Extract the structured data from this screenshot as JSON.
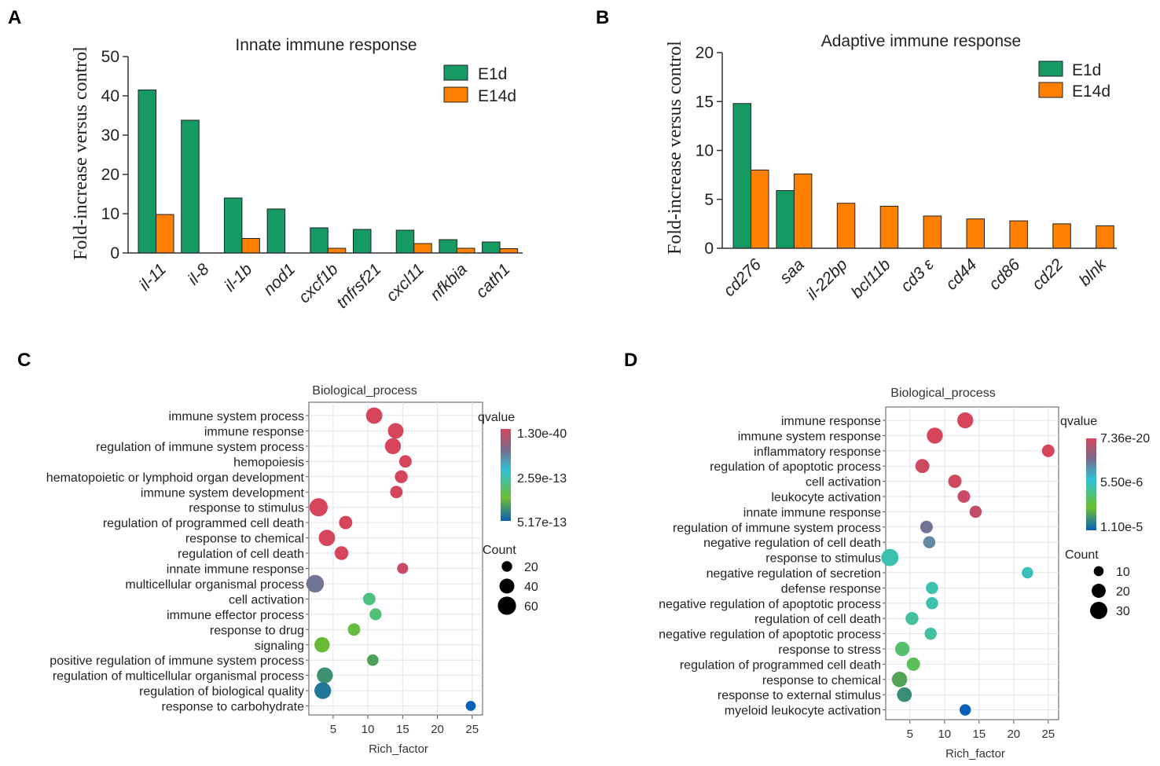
{
  "panels": {
    "A": "A",
    "B": "B",
    "C": "C",
    "D": "D"
  },
  "chart_data": [
    {
      "id": "A",
      "type": "bar",
      "title": "Innate immune response",
      "ylabel": "Fold-increase versus control",
      "xlabel": "",
      "ylim": [
        0,
        50
      ],
      "yticks": [
        0,
        10,
        20,
        30,
        40,
        50
      ],
      "categories": [
        "il-11",
        "il-8",
        "il-1b",
        "nod1",
        "cxcf1b",
        "tnfrsf21",
        "cxcl11",
        "nfkbia",
        "cath1"
      ],
      "series": [
        {
          "name": "E1d",
          "color": "#159A63",
          "values": [
            41.5,
            33.8,
            14,
            11.2,
            6.4,
            6,
            5.8,
            3.4,
            2.8
          ]
        },
        {
          "name": "E14d",
          "color": "#FF8000",
          "values": [
            9.8,
            null,
            3.7,
            null,
            1.2,
            null,
            2.4,
            1.2,
            1.1
          ]
        }
      ],
      "legend": "top-right"
    },
    {
      "id": "B",
      "type": "bar",
      "title": "Adaptive immune response",
      "ylabel": "Fold-increase versus control",
      "xlabel": "",
      "ylim": [
        0,
        20
      ],
      "yticks": [
        0,
        5,
        10,
        15,
        20
      ],
      "categories": [
        "cd276",
        "saa",
        "il-22bp",
        "bcl11b",
        "cd3 ε",
        "cd44",
        "cd86",
        "cd22",
        "blnk"
      ],
      "series": [
        {
          "name": "E1d",
          "color": "#159A63",
          "values": [
            14.8,
            5.9,
            null,
            null,
            null,
            null,
            null,
            null,
            null
          ]
        },
        {
          "name": "E14d",
          "color": "#FF8000",
          "values": [
            8,
            7.6,
            4.6,
            4.3,
            3.3,
            3,
            2.8,
            2.5,
            2.3
          ]
        }
      ],
      "legend": "top-right"
    },
    {
      "id": "C",
      "type": "scatter",
      "title": "Biological_process",
      "xlabel": "Rich_factor",
      "xlim": [
        1.5,
        26.5
      ],
      "xticks": [
        5,
        10,
        15,
        20,
        25
      ],
      "terms": [
        "immune system process",
        "immune response",
        "regulation of immune system process",
        "hemopoiesis",
        "hematopoietic or lymphoid organ development",
        "immune system development",
        "response to stimulus",
        "regulation of programmed cell death",
        "response to chemical",
        "regulation of cell death",
        "innate immune response",
        "multicellular organismal process",
        "cell activation",
        "immune effector process",
        "response to drug",
        "signaling",
        "positive regulation of immune system process",
        "regulation of multicellular organismal process",
        "regulation of biological quality",
        "response to carbohydrate"
      ],
      "points": [
        {
          "x": 10.9,
          "count": 48,
          "q": 0.0
        },
        {
          "x": 14,
          "count": 44,
          "q": 0.0
        },
        {
          "x": 13.6,
          "count": 46,
          "q": 0.0
        },
        {
          "x": 15.4,
          "count": 28,
          "q": 0.0
        },
        {
          "x": 14.8,
          "count": 30,
          "q": 0.0
        },
        {
          "x": 14.1,
          "count": 28,
          "q": 0.0
        },
        {
          "x": 2.9,
          "count": 60,
          "q": 0.0
        },
        {
          "x": 6.8,
          "count": 32,
          "q": 0.0
        },
        {
          "x": 4.1,
          "count": 48,
          "q": 0.0
        },
        {
          "x": 6.2,
          "count": 34,
          "q": 0.0
        },
        {
          "x": 15,
          "count": 22,
          "q": 0.03
        },
        {
          "x": 2.4,
          "count": 56,
          "q": 0.25
        },
        {
          "x": 10.2,
          "count": 28,
          "q": 0.6
        },
        {
          "x": 11.1,
          "count": 26,
          "q": 0.62
        },
        {
          "x": 8,
          "count": 28,
          "q": 0.72
        },
        {
          "x": 3.4,
          "count": 42,
          "q": 0.76
        },
        {
          "x": 10.7,
          "count": 24,
          "q": 0.83
        },
        {
          "x": 3.8,
          "count": 46,
          "q": 0.87
        },
        {
          "x": 3.5,
          "count": 50,
          "q": 0.94
        },
        {
          "x": 24.8,
          "count": 18,
          "q": 1.0
        }
      ],
      "colorbar": {
        "title": "qvalue",
        "labels": [
          "1.30e-40",
          "2.59e-13",
          "5.17e-13"
        ]
      },
      "size_legend": {
        "title": "Count",
        "values": [
          20,
          40,
          60
        ]
      }
    },
    {
      "id": "D",
      "type": "scatter",
      "title": "Biological_process",
      "xlabel": "Rich_factor",
      "xlim": [
        1.5,
        26.5
      ],
      "xticks": [
        5,
        10,
        15,
        20,
        25
      ],
      "xtick_labels": [
        "5",
        "10",
        "15",
        "20",
        "25"
      ],
      "terms": [
        "immune response",
        "immune system response",
        "inflammatory response",
        "regulation of apoptotic process",
        "cell activation",
        "leukocyte activation",
        "innate immune response",
        "regulation of immune system process",
        "negative regulation of cell death",
        "response to stimulus",
        "negative regulation of secretion",
        "defense response",
        "negative regulation of apoptotic process",
        "regulation of cell death",
        "negative regulation of apoptotic process",
        "response to stress",
        "regulation of programmed cell death",
        "response to chemical",
        "response to external stimulus",
        "myeloid leukocyte activation"
      ],
      "points": [
        {
          "x": 13,
          "count": 26,
          "q": 0.0
        },
        {
          "x": 8.6,
          "count": 26,
          "q": 0.0
        },
        {
          "x": 25,
          "count": 16,
          "q": 0.0
        },
        {
          "x": 6.8,
          "count": 20,
          "q": 0.02
        },
        {
          "x": 11.5,
          "count": 18,
          "q": 0.02
        },
        {
          "x": 12.8,
          "count": 16,
          "q": 0.03
        },
        {
          "x": 14.5,
          "count": 15,
          "q": 0.05
        },
        {
          "x": 7.4,
          "count": 16,
          "q": 0.25
        },
        {
          "x": 7.8,
          "count": 15,
          "q": 0.3
        },
        {
          "x": 2.1,
          "count": 30,
          "q": 0.52
        },
        {
          "x": 22,
          "count": 13,
          "q": 0.5
        },
        {
          "x": 8.2,
          "count": 15,
          "q": 0.52
        },
        {
          "x": 8.2,
          "count": 15,
          "q": 0.52
        },
        {
          "x": 5.3,
          "count": 17,
          "q": 0.55
        },
        {
          "x": 8,
          "count": 15,
          "q": 0.55
        },
        {
          "x": 3.9,
          "count": 21,
          "q": 0.64
        },
        {
          "x": 5.5,
          "count": 18,
          "q": 0.67
        },
        {
          "x": 3.5,
          "count": 24,
          "q": 0.82
        },
        {
          "x": 4.2,
          "count": 22,
          "q": 0.88
        },
        {
          "x": 13,
          "count": 13,
          "q": 1.0
        }
      ],
      "colorbar": {
        "title": "qvalue",
        "labels": [
          "7.36e-20",
          "5.50e-6",
          "1.10e-5"
        ]
      },
      "size_legend": {
        "title": "Count",
        "values": [
          10,
          20,
          30
        ]
      }
    }
  ]
}
